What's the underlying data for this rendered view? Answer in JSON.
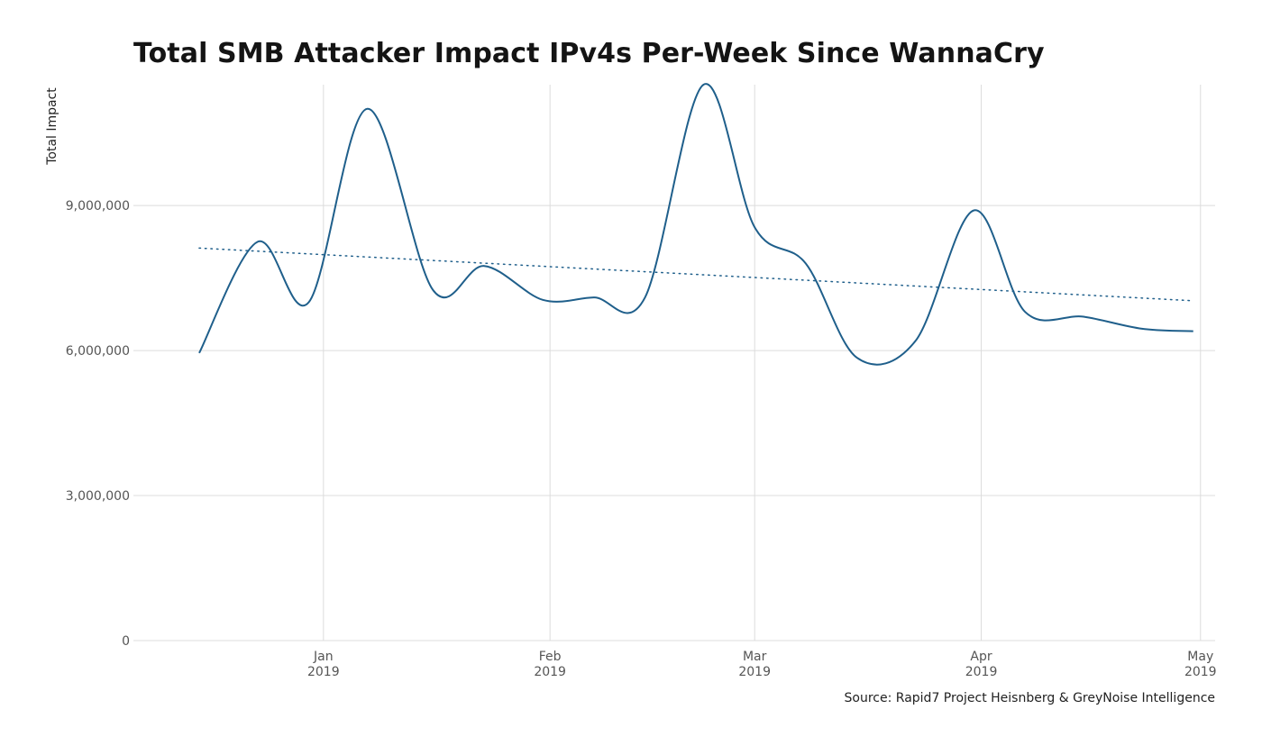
{
  "chart_data": {
    "type": "line",
    "title": "Total SMB Attacker Impact IPv4s Per-Week Since WannaCry",
    "ylabel": "Total Impact",
    "xlabel": "",
    "caption": "Source: Rapid7 Project Heisnberg & GreyNoise Intelligence",
    "ylim": [
      0,
      11500000
    ],
    "xlim": [
      "2018-12-06",
      "2019-05-03"
    ],
    "y_ticks": [
      {
        "value": 0,
        "label": "0"
      },
      {
        "value": 3000000,
        "label": "3,000,000"
      },
      {
        "value": 6000000,
        "label": "6,000,000"
      },
      {
        "value": 9000000,
        "label": "9,000,000"
      }
    ],
    "x_ticks": [
      {
        "date": "2019-01-01",
        "label": "Jan",
        "sub": "2019"
      },
      {
        "date": "2019-02-01",
        "label": "Feb",
        "sub": "2019"
      },
      {
        "date": "2019-03-01",
        "label": "Mar",
        "sub": "2019"
      },
      {
        "date": "2019-04-01",
        "label": "Apr",
        "sub": "2019"
      },
      {
        "date": "2019-05-01",
        "label": "May",
        "sub": "2019"
      }
    ],
    "grid": true,
    "series": [
      {
        "color": "#1f5f8b",
        "x": [
          "2018-12-15",
          "2018-12-23",
          "2018-12-30",
          "2019-01-07",
          "2019-01-16",
          "2019-01-23",
          "2019-01-31",
          "2019-02-07",
          "2019-02-14",
          "2019-02-22",
          "2019-03-01",
          "2019-03-08",
          "2019-03-15",
          "2019-03-23",
          "2019-03-31",
          "2019-04-07",
          "2019-04-15",
          "2019-04-23",
          "2019-04-30"
        ],
        "values": [
          5950000,
          8250000,
          7000000,
          11000000,
          7250000,
          7750000,
          7050000,
          7100000,
          7100000,
          11500000,
          8550000,
          7800000,
          5850000,
          6200000,
          8900000,
          6800000,
          6700000,
          6450000,
          6400000
        ]
      }
    ],
    "trend": {
      "color": "#1f5f8b",
      "style": "dotted",
      "x": [
        "2018-12-15",
        "2019-04-30"
      ],
      "values": [
        8120000,
        7030000
      ]
    }
  }
}
